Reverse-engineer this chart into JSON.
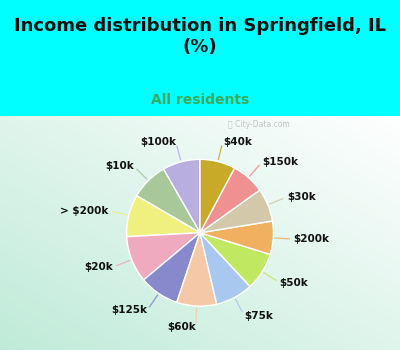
{
  "title": "Income distribution in Springfield, IL\n(%)",
  "subtitle": "All residents",
  "title_color": "#111111",
  "subtitle_color": "#3aaa5c",
  "bg_cyan": "#00ffff",
  "chart_bg_color1": "#ffffff",
  "chart_bg_color2": "#b0ddc8",
  "labels": [
    "$100k",
    "$10k",
    "> $200k",
    "$20k",
    "$125k",
    "$60k",
    "$75k",
    "$50k",
    "$200k",
    "$30k",
    "$150k",
    "$40k"
  ],
  "sizes": [
    8.5,
    8.5,
    9.5,
    10.5,
    9.0,
    9.0,
    8.5,
    8.5,
    7.5,
    7.5,
    7.5,
    8.0
  ],
  "colors": [
    "#b8aee0",
    "#a8c89a",
    "#f0f080",
    "#f0aac0",
    "#8888cc",
    "#f5c8a8",
    "#a8c8f0",
    "#c0e860",
    "#f0b060",
    "#d4c8aa",
    "#f09090",
    "#c8aa28"
  ],
  "startangle": 90,
  "wedge_linewidth": 1.0,
  "wedge_edgecolor": "#ffffff",
  "title_fontsize": 13,
  "subtitle_fontsize": 10,
  "label_fontsize": 7.5,
  "watermark": "City-Data.com"
}
